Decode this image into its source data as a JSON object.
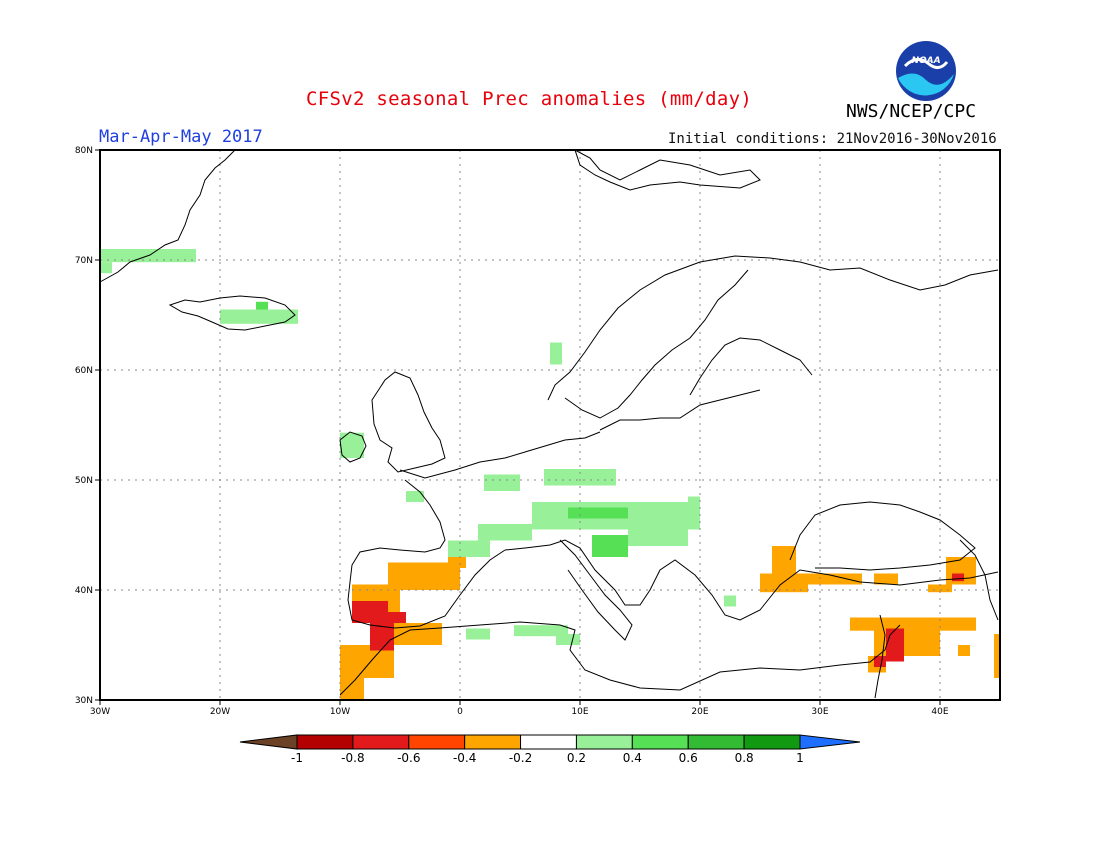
{
  "header": {
    "title": "CFSv2 seasonal Prec anomalies (mm/day)",
    "period": "Mar-Apr-May 2017",
    "initial_conditions": "Initial conditions: 21Nov2016-30Nov2016",
    "agency": "NWS/NCEP/CPC",
    "logo_text": "NOAA"
  },
  "map": {
    "lon_range": [
      -30,
      45
    ],
    "lat_range": [
      30,
      80
    ],
    "lon_ticks": [
      "30W",
      "20W",
      "10W",
      "0",
      "10E",
      "20E",
      "30E",
      "40E"
    ],
    "lat_ticks": [
      "30N",
      "40N",
      "50N",
      "60N",
      "70N",
      "80N"
    ],
    "grid": "dotted"
  },
  "legend": {
    "labels": [
      "-1",
      "-0.8",
      "-0.6",
      "-0.4",
      "-0.2",
      "0.2",
      "0.4",
      "0.6",
      "0.8",
      "1"
    ],
    "colors": [
      "#6b4226",
      "#b30000",
      "#e31a1c",
      "#ff4500",
      "#ffa500",
      "#ffffff",
      "#98f098",
      "#55e055",
      "#33bb33",
      "#119a11",
      "#1e6fff"
    ]
  },
  "anomaly_regions": [
    {
      "name": "east-greenland",
      "color": "#98f098",
      "lon": [
        -30,
        -22
      ],
      "lat": [
        69.8,
        71
      ]
    },
    {
      "name": "east-greenland-sub",
      "color": "#98f098",
      "lon": [
        -30,
        -29
      ],
      "lat": [
        68.8,
        69.8
      ]
    },
    {
      "name": "iceland",
      "color": "#98f098",
      "lon": [
        -20,
        -13.5
      ],
      "lat": [
        64.2,
        65.5
      ]
    },
    {
      "name": "iceland-strong",
      "color": "#55e055",
      "lon": [
        -17,
        -16
      ],
      "lat": [
        65.5,
        66.2
      ]
    },
    {
      "name": "ireland",
      "color": "#98f098",
      "lon": [
        -10,
        -8
      ],
      "lat": [
        52,
        54.3
      ]
    },
    {
      "name": "norway-coast",
      "color": "#98f098",
      "lon": [
        7.5,
        8.5
      ],
      "lat": [
        60.5,
        62.5
      ]
    },
    {
      "name": "france-north",
      "color": "#98f098",
      "lon": [
        2,
        5
      ],
      "lat": [
        49,
        50.5
      ]
    },
    {
      "name": "germany-south",
      "color": "#98f098",
      "lon": [
        7,
        13
      ],
      "lat": [
        49.5,
        51
      ]
    },
    {
      "name": "alps",
      "color": "#98f098",
      "lon": [
        6,
        20
      ],
      "lat": [
        45.5,
        48
      ]
    },
    {
      "name": "alps-strong",
      "color": "#55e055",
      "lon": [
        9,
        14
      ],
      "lat": [
        46.5,
        47.5
      ]
    },
    {
      "name": "italy-adriatic",
      "color": "#55e055",
      "lon": [
        11,
        14
      ],
      "lat": [
        43,
        45
      ]
    },
    {
      "name": "balkans-north",
      "color": "#98f098",
      "lon": [
        14,
        19
      ],
      "lat": [
        44,
        46
      ]
    },
    {
      "name": "hungary",
      "color": "#98f098",
      "lon": [
        19,
        20
      ],
      "lat": [
        47.5,
        48.5
      ]
    },
    {
      "name": "france-south",
      "color": "#98f098",
      "lon": [
        1.5,
        6
      ],
      "lat": [
        44.5,
        46
      ]
    },
    {
      "name": "spain-north",
      "color": "#98f098",
      "lon": [
        -1,
        2.5
      ],
      "lat": [
        43,
        44.5
      ]
    },
    {
      "name": "france-west",
      "color": "#98f098",
      "lon": [
        -4.5,
        -3
      ],
      "lat": [
        48,
        49
      ]
    },
    {
      "name": "aegean",
      "color": "#98f098",
      "lon": [
        22,
        23
      ],
      "lat": [
        38.5,
        39.5
      ]
    },
    {
      "name": "algeria",
      "color": "#98f098",
      "lon": [
        0.5,
        2.5
      ],
      "lat": [
        35.5,
        36.5
      ]
    },
    {
      "name": "tunisia-algeria",
      "color": "#98f098",
      "lon": [
        4.5,
        9
      ],
      "lat": [
        35.8,
        36.8
      ]
    },
    {
      "name": "tunisia-south",
      "color": "#98f098",
      "lon": [
        8,
        10
      ],
      "lat": [
        35,
        36
      ]
    },
    {
      "name": "iberia-dry",
      "color": "#ffa500",
      "lon": [
        -9,
        -5
      ],
      "lat": [
        37,
        40.5
      ]
    },
    {
      "name": "spain-central-dry",
      "color": "#ffa500",
      "lon": [
        -6,
        0
      ],
      "lat": [
        40,
        42.5
      ]
    },
    {
      "name": "spain-northeast-dry",
      "color": "#ffa500",
      "lon": [
        -1,
        0.5
      ],
      "lat": [
        42,
        43
      ]
    },
    {
      "name": "portugal-south-dry",
      "color": "#e31a1c",
      "lon": [
        -9,
        -6
      ],
      "lat": [
        37.5,
        39
      ]
    },
    {
      "name": "gibraltar-dry",
      "color": "#e31a1c",
      "lon": [
        -9,
        -4.5
      ],
      "lat": [
        37,
        38
      ]
    },
    {
      "name": "strait-dry",
      "color": "#ffa500",
      "lon": [
        -6.5,
        -1.5
      ],
      "lat": [
        35,
        37
      ]
    },
    {
      "name": "morocco-dry",
      "color": "#ffa500",
      "lon": [
        -10,
        -5.5
      ],
      "lat": [
        32,
        35
      ]
    },
    {
      "name": "morocco-core",
      "color": "#e31a1c",
      "lon": [
        -7.5,
        -5.5
      ],
      "lat": [
        34.5,
        37
      ]
    },
    {
      "name": "morocco-south-dry",
      "color": "#ffa500",
      "lon": [
        -10,
        -8
      ],
      "lat": [
        30,
        32
      ]
    },
    {
      "name": "bulgaria-dry",
      "color": "#ffa500",
      "lon": [
        26,
        28
      ],
      "lat": [
        41,
        44
      ]
    },
    {
      "name": "turkey-west-dry",
      "color": "#ffa500",
      "lon": [
        25,
        29
      ],
      "lat": [
        39.8,
        41.5
      ]
    },
    {
      "name": "turkey-north-dry",
      "color": "#ffa500",
      "lon": [
        29,
        33.5
      ],
      "lat": [
        40.5,
        41.5
      ]
    },
    {
      "name": "turkey-central-dry",
      "color": "#ffa500",
      "lon": [
        34.5,
        36.5
      ],
      "lat": [
        40.5,
        41.5
      ]
    },
    {
      "name": "caucasus-dry",
      "color": "#ffa500",
      "lon": [
        40.5,
        43
      ],
      "lat": [
        40.5,
        43
      ]
    },
    {
      "name": "caucasus-core",
      "color": "#e31a1c",
      "lon": [
        41,
        42
      ],
      "lat": [
        40.8,
        41.5
      ]
    },
    {
      "name": "turkey-east-dry",
      "color": "#ffa500",
      "lon": [
        39,
        41
      ],
      "lat": [
        39.8,
        40.5
      ]
    },
    {
      "name": "levant-dry",
      "color": "#ffa500",
      "lon": [
        32.5,
        43
      ],
      "lat": [
        36.3,
        37.5
      ]
    },
    {
      "name": "syria-dry",
      "color": "#ffa500",
      "lon": [
        34.5,
        40
      ],
      "lat": [
        34,
        36.5
      ]
    },
    {
      "name": "syria-core",
      "color": "#e31a1c",
      "lon": [
        35.5,
        37
      ],
      "lat": [
        33.5,
        36.5
      ]
    },
    {
      "name": "israel-dry",
      "color": "#ffa500",
      "lon": [
        34,
        35.5
      ],
      "lat": [
        32.5,
        34
      ]
    },
    {
      "name": "israel-core",
      "color": "#e31a1c",
      "lon": [
        34.5,
        35.5
      ],
      "lat": [
        33,
        34
      ]
    },
    {
      "name": "iraq-dry",
      "color": "#ffa500",
      "lon": [
        41.5,
        42.5
      ],
      "lat": [
        34,
        35
      ]
    },
    {
      "name": "iran-dry",
      "color": "#ffa500",
      "lon": [
        44.5,
        45
      ],
      "lat": [
        32,
        36
      ]
    }
  ]
}
